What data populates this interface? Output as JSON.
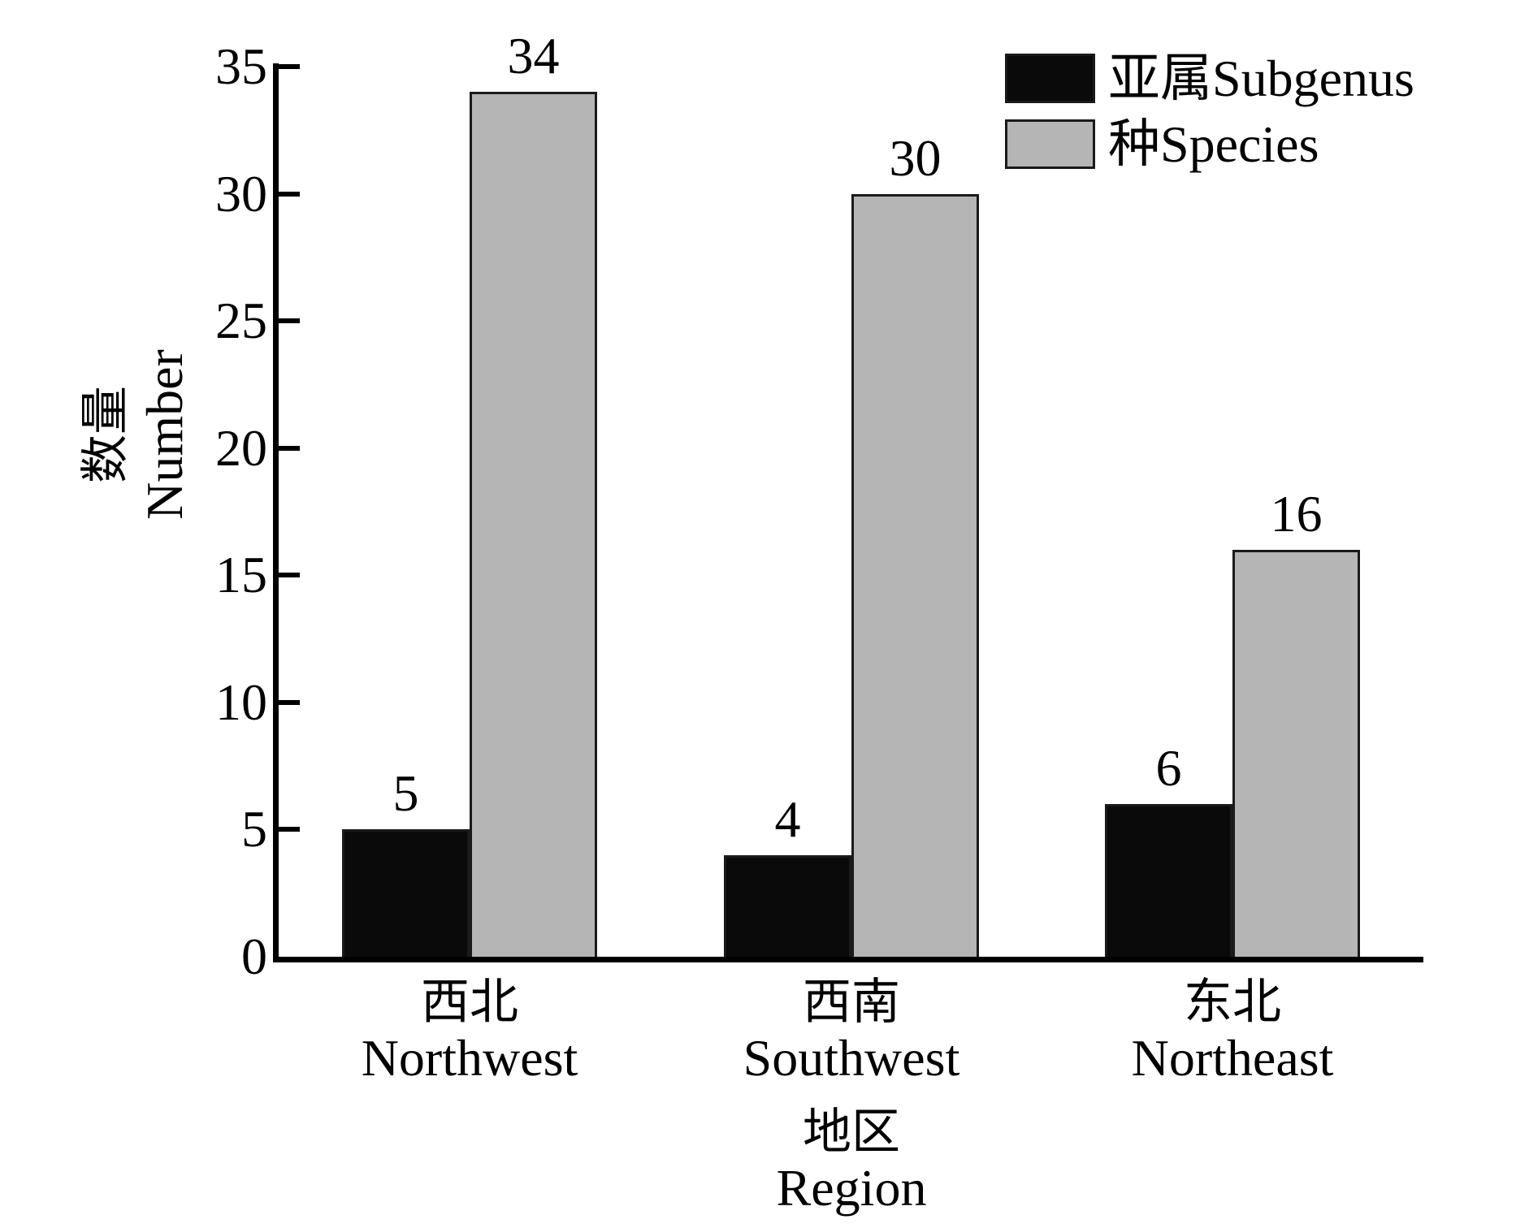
{
  "chart_data": {
    "type": "bar",
    "title": "",
    "categories_zh": [
      "西北",
      "西南",
      "东北"
    ],
    "categories_en": [
      "Northwest",
      "Southwest",
      "Northeast"
    ],
    "series": [
      {
        "key": "subgenus",
        "name": "亚属Subgenus",
        "color": "#0a0a0a",
        "values": [
          5,
          4,
          6
        ]
      },
      {
        "key": "species",
        "name": "种Species",
        "color": "#b5b5b5",
        "values": [
          34,
          30,
          16
        ]
      }
    ],
    "ylabel_zh": "数量",
    "ylabel_en": "Number",
    "xlabel_zh": "地区",
    "xlabel_en": "Region",
    "ylim": [
      0,
      35
    ],
    "yticks": [
      0,
      5,
      10,
      15,
      20,
      25,
      30,
      35
    ],
    "grid": false,
    "legend_position": "top-right",
    "bar_border_color": "#1a1a1a",
    "axis_color": "#000000",
    "background": "#ffffff"
  }
}
